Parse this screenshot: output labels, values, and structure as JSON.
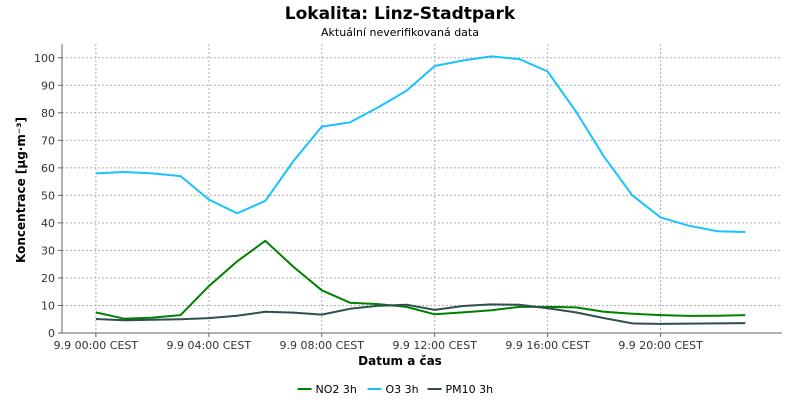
{
  "chart_data": {
    "type": "line",
    "title": "Lokalita: Linz-Stadtpark",
    "subtitle": "Aktuální neverifikovaná data",
    "xlabel": "Datum a čas",
    "ylabel": "Koncentrace [µg·m⁻³]",
    "ylim": [
      0,
      105
    ],
    "y_ticks": [
      0,
      10,
      20,
      30,
      40,
      50,
      60,
      70,
      80,
      90,
      100
    ],
    "x_hours": [
      0,
      1,
      2,
      3,
      4,
      5,
      6,
      7,
      8,
      9,
      10,
      11,
      12,
      13,
      14,
      15,
      16,
      17,
      18,
      19,
      20,
      21,
      22,
      23
    ],
    "xlim_hours": [
      -1.2,
      24.3
    ],
    "x_ticks": [
      {
        "hour": 0,
        "label": "9.9 00:00 CEST"
      },
      {
        "hour": 4,
        "label": "9.9 04:00 CEST"
      },
      {
        "hour": 8,
        "label": "9.9 08:00 CEST"
      },
      {
        "hour": 12,
        "label": "9.9 12:00 CEST"
      },
      {
        "hour": 16,
        "label": "9.9 16:00 CEST"
      },
      {
        "hour": 20,
        "label": "9.9 20:00 CEST"
      }
    ],
    "grid": true,
    "legend_position": "bottom",
    "series": [
      {
        "name": "NO2 3h",
        "color": "#008000",
        "values": [
          7.5,
          5.2,
          5.6,
          6.5,
          17,
          26,
          33.5,
          24,
          15.5,
          11,
          10.5,
          9.5,
          6.8,
          7.5,
          8.3,
          9.5,
          9.5,
          9.3,
          7.7,
          7,
          6.5,
          6.2,
          6.3,
          6.5
        ]
      },
      {
        "name": "O3 3h",
        "color": "#19c2ff",
        "values": [
          58,
          58.5,
          58,
          57,
          48.5,
          43.5,
          48,
          62.5,
          75,
          76.5,
          82,
          88,
          97,
          99,
          100.5,
          99.5,
          95,
          80.5,
          64,
          50,
          42,
          39,
          37,
          36.7
        ]
      },
      {
        "name": "PM10 3h",
        "color": "#2f4f4f",
        "values": [
          5.1,
          4.6,
          4.8,
          5,
          5.4,
          6.3,
          7.7,
          7.4,
          6.7,
          8.8,
          9.9,
          10.3,
          8.4,
          9.8,
          10.4,
          10.3,
          9,
          7.5,
          5.4,
          3.5,
          3.3,
          3.4,
          3.5,
          3.6
        ]
      }
    ]
  }
}
